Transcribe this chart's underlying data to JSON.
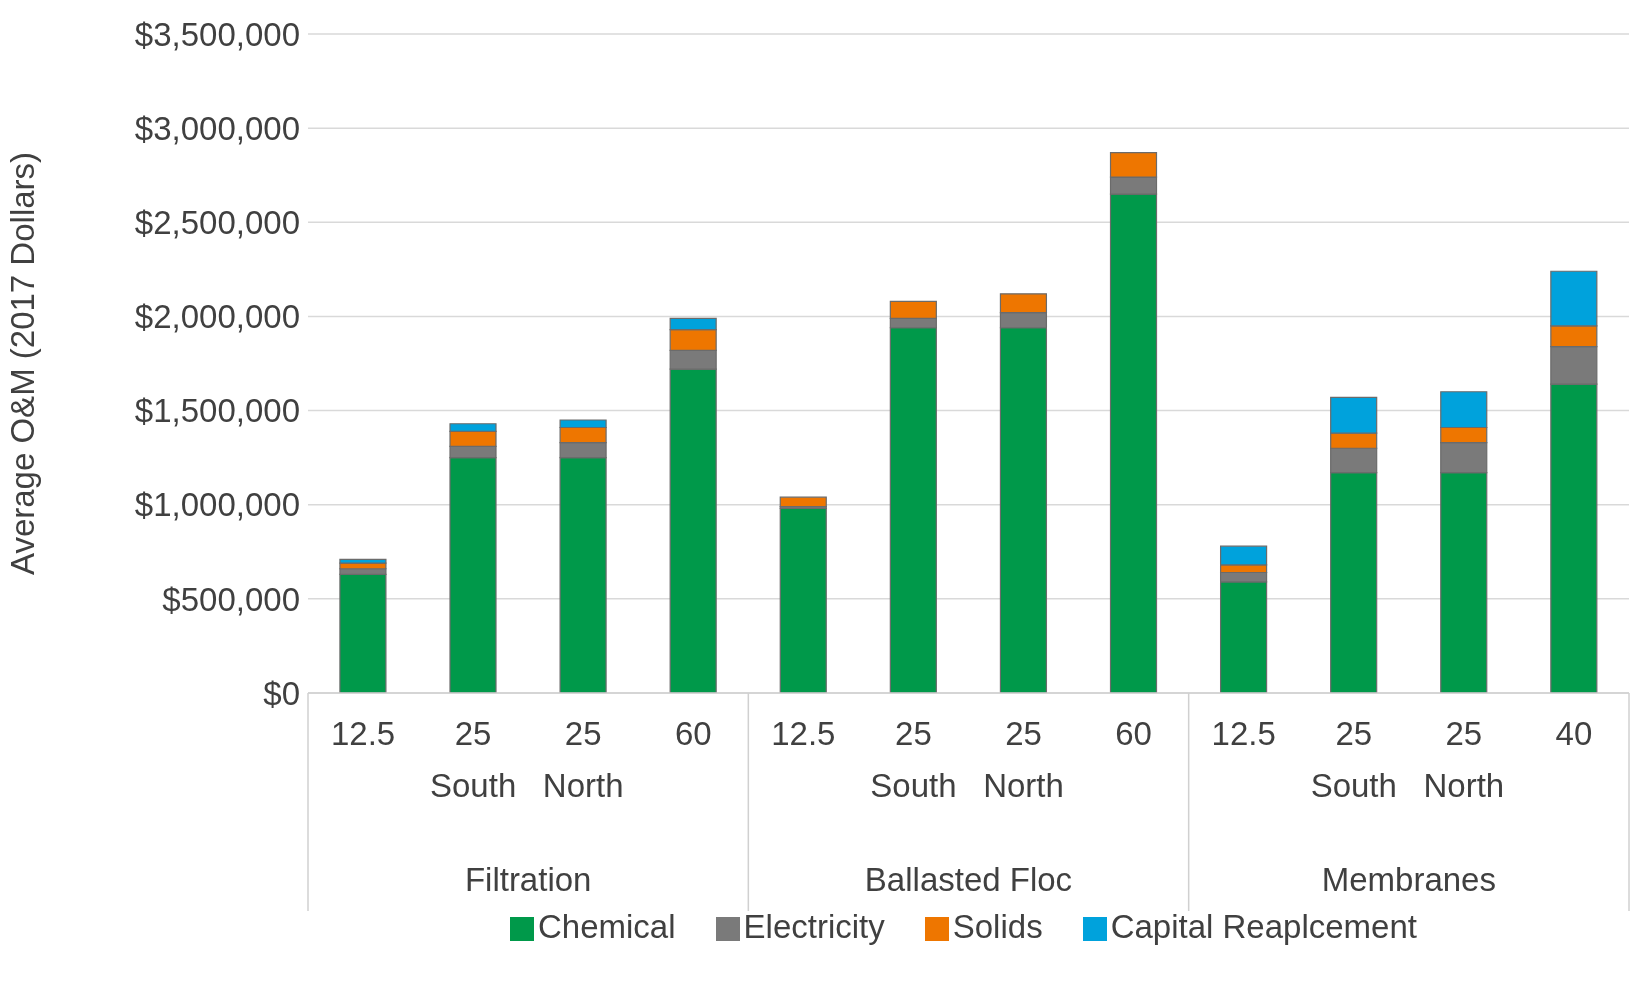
{
  "chart_data": {
    "type": "bar",
    "stacked": true,
    "ylabel": "Average O&M (2017 Dollars)",
    "categories": [
      "12.5",
      "25 South",
      "25 North",
      "60",
      "12.5",
      "25 South",
      "25 North",
      "60",
      "12.5",
      "25 South",
      "25 North",
      "40"
    ],
    "annotations": [
      "Filtration",
      "Ballasted Floc",
      "Membranes"
    ],
    "series": [
      {
        "name": "Chemical",
        "color": "#00994a",
        "values": [
          630000,
          1250000,
          1250000,
          1720000,
          980000,
          1940000,
          1940000,
          2650000,
          590000,
          1170000,
          1170000,
          1640000
        ]
      },
      {
        "name": "Electricity",
        "color": "#7a7a7a",
        "values": [
          30000,
          60000,
          80000,
          100000,
          10000,
          50000,
          80000,
          90000,
          50000,
          130000,
          160000,
          200000
        ]
      },
      {
        "name": "Solids",
        "color": "#ee7600",
        "values": [
          30000,
          80000,
          80000,
          110000,
          50000,
          90000,
          100000,
          130000,
          40000,
          80000,
          80000,
          110000
        ]
      },
      {
        "name": "Capital Reaplcement",
        "color": "#00a2dc",
        "values": [
          20000,
          40000,
          40000,
          60000,
          0,
          0,
          0,
          0,
          100000,
          190000,
          190000,
          290000
        ]
      }
    ],
    "ylim": [
      0,
      3500000
    ],
    "yticks": [
      {
        "value": 0,
        "label": "$0"
      },
      {
        "value": 500000,
        "label": "$500,000"
      },
      {
        "value": 1000000,
        "label": "$1,000,000"
      },
      {
        "value": 1500000,
        "label": "$1,500,000"
      },
      {
        "value": 2000000,
        "label": "$2,000,000"
      },
      {
        "value": 2500000,
        "label": "$2,500,000"
      },
      {
        "value": 3000000,
        "label": "$3,000,000"
      },
      {
        "value": 3500000,
        "label": "$3,500,000"
      }
    ],
    "grid": "y",
    "legend": "bottom"
  }
}
